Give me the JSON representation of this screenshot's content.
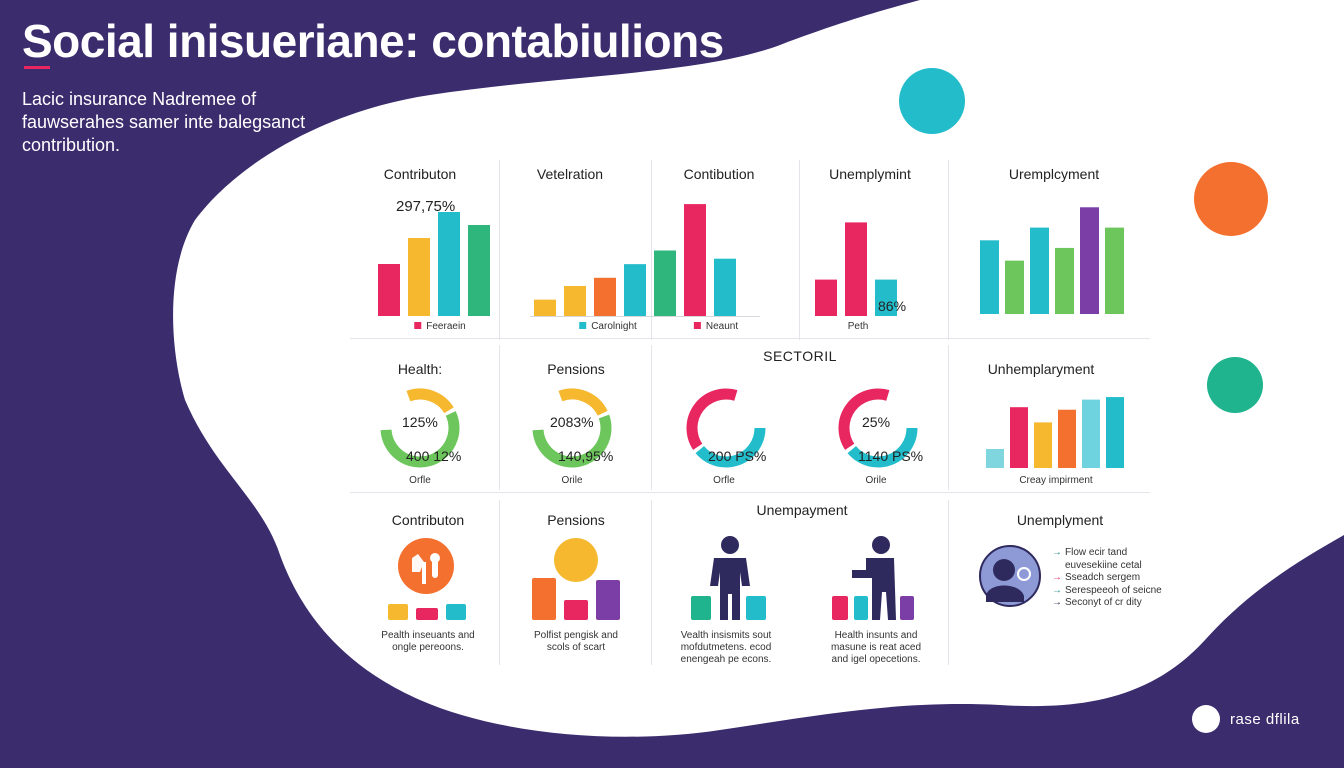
{
  "header": {
    "title": "Social inisueriane: contabiulions",
    "subtitle": "Lacic insurance Nadremee of fauwserahes samer inte balegsanct contribution."
  },
  "colors": {
    "background": "#3b2c6e",
    "card": "#ffffff",
    "pink": "#e8265f",
    "yellow": "#f6b82f",
    "teal": "#23bccb",
    "green": "#2eb67d",
    "orange": "#f4702e",
    "lime": "#6cc65c",
    "purple": "#7a3ea6",
    "navy": "#2f2a5e"
  },
  "decorations": {
    "circles": [
      "teal-circle",
      "orange-circle",
      "green-circle"
    ]
  },
  "row1": {
    "panel1": {
      "title": "Contributon",
      "value": "297,75%",
      "legend": "Feeraein"
    },
    "panel2": {
      "title": "Vetelration",
      "legend": "Carolnight"
    },
    "panel3": {
      "title": "Contibution",
      "legend": "Neaunt"
    },
    "panel4": {
      "title": "Unemplymint",
      "value": "86%",
      "legend": "Peth"
    },
    "panel5": {
      "title": "Uremplcyment"
    }
  },
  "row2": {
    "section_label": "SECTORIL",
    "panel1": {
      "title": "Health:",
      "value_top": "125%",
      "value_bottom": "400 12%",
      "caption": "Orfle"
    },
    "panel2": {
      "title": "Pensions",
      "value_top": "2083%",
      "value_bottom": "140,95%",
      "caption": "Orile"
    },
    "panel3": {
      "value_bottom": "200 PS%",
      "caption": "Orfle"
    },
    "panel4": {
      "value_top": "25%",
      "value_bottom": "1140 PS%",
      "caption": "Orile"
    },
    "panel5": {
      "title": "Unhemplaryment",
      "caption": "Creay impirment"
    }
  },
  "row3": {
    "panel1": {
      "title": "Contributon",
      "caption": [
        "Pealth inseuants and",
        "ongle pereoons."
      ]
    },
    "panel2": {
      "title": "Pensions",
      "caption": [
        "Polfist pengisk and",
        "scols of scart"
      ]
    },
    "panel3": {
      "title": "Unempayment",
      "caption": [
        "Vealth insismits sout",
        "mofdutmetens. ecod",
        "enengeah pe econs."
      ]
    },
    "panel4": {
      "caption": [
        "Health insunts and",
        "masune is reat aced",
        "and igel opecetions."
      ]
    },
    "panel5": {
      "title": "Unemplyment",
      "lines": [
        "Flow ecir tand",
        "euvesekiine cetal",
        "Sseadch sergem",
        "Serespeeoh of seicne",
        "Seconyt of cr dity"
      ]
    }
  },
  "footer": {
    "brand": "rase dflila"
  },
  "chart_data": [
    {
      "type": "bar",
      "panel": "row1.panel1",
      "title": "Contributon",
      "values": [
        4,
        6,
        8,
        7
      ],
      "ylim": [
        0,
        8
      ],
      "annotation": "297,75%",
      "legend": [
        "Feeraein"
      ]
    },
    {
      "type": "bar",
      "panel": "row1.panel2-3",
      "title": "Vetelration / Contibution",
      "values": [
        1.2,
        2.2,
        2.8,
        3.8,
        4.8,
        8.2,
        4.2
      ],
      "ylim": [
        0,
        8.5
      ],
      "legend": [
        "Carolnight",
        "Neaunt"
      ]
    },
    {
      "type": "bar",
      "panel": "row1.panel4",
      "title": "Unemplymint",
      "values": [
        2.8,
        7.2,
        2.8
      ],
      "ylim": [
        0,
        8
      ],
      "annotation": "86%",
      "legend": [
        "Peth"
      ]
    },
    {
      "type": "bar",
      "panel": "row1.panel5",
      "title": "Uremplcyment",
      "values": [
        5.8,
        4.2,
        6.8,
        5.2,
        8.4,
        6.8
      ],
      "ylim": [
        0,
        8.5
      ]
    },
    {
      "type": "pie",
      "panel": "row2.panel1",
      "title": "Health:",
      "slices": [
        0.28,
        0.72
      ],
      "labels": [
        "125%",
        "400 12%"
      ]
    },
    {
      "type": "pie",
      "panel": "row2.panel2",
      "title": "Pensions",
      "slices": [
        0.3,
        0.7
      ],
      "labels": [
        "2083%",
        "140,95%"
      ]
    },
    {
      "type": "pie",
      "panel": "row2.panel3",
      "slices": [
        0.5,
        0.5
      ],
      "labels": [
        "200 PS%"
      ]
    },
    {
      "type": "pie",
      "panel": "row2.panel4",
      "slices": [
        0.5,
        0.5
      ],
      "labels": [
        "25%",
        "1140 PS%"
      ]
    },
    {
      "type": "bar",
      "panel": "row2.panel5",
      "title": "Unhemplaryment",
      "values": [
        1.5,
        4.8,
        3.6,
        4.6,
        5.4,
        5.6
      ],
      "ylim": [
        0,
        6
      ]
    }
  ]
}
